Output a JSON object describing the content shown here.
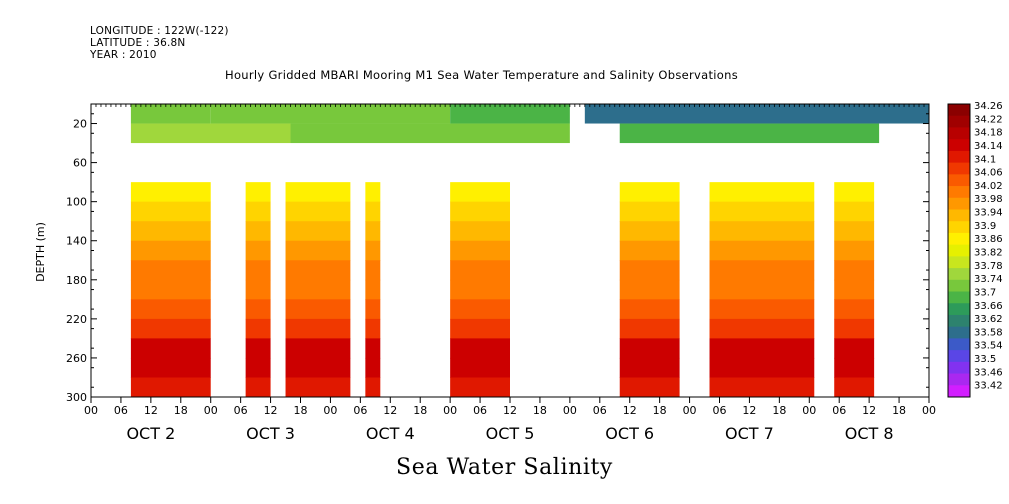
{
  "header": {
    "longitude": "LONGITUDE : 122W(-122)",
    "latitude": "LATITUDE : 36.8N",
    "year": "YEAR : 2010"
  },
  "chart_data": {
    "type": "heatmap",
    "title": "Hourly Gridded MBARI Mooring M1 Sea Water Temperature and Salinity Observations",
    "xlabel": "Sea Water Salinity",
    "ylabel": "DEPTH (m)",
    "x_units": "hours since OCT 2 00:00",
    "xlim": [
      0,
      168
    ],
    "ylim": [
      300,
      0
    ],
    "y_ticks": [
      20,
      60,
      100,
      140,
      180,
      220,
      260,
      300
    ],
    "x_hour_ticks": [
      "00",
      "06",
      "12",
      "18",
      "00",
      "06",
      "12",
      "18",
      "00",
      "06",
      "12",
      "18",
      "00",
      "06",
      "12",
      "18",
      "00",
      "06",
      "12",
      "18",
      "00",
      "06",
      "12",
      "18",
      "00",
      "06",
      "12",
      "18",
      "00"
    ],
    "day_labels": [
      "OCT  2",
      "OCT  3",
      "OCT  4",
      "OCT  5",
      "OCT  6",
      "OCT  7",
      "OCT  8"
    ],
    "colorbar_levels": [
      34.26,
      34.22,
      34.18,
      34.14,
      34.1,
      34.06,
      34.02,
      33.98,
      33.94,
      33.9,
      33.86,
      33.82,
      33.78,
      33.74,
      33.7,
      33.66,
      33.62,
      33.58,
      33.54,
      33.5,
      33.46,
      33.42
    ],
    "colorbar_colors": [
      "#8b0000",
      "#a00000",
      "#b80000",
      "#cc0000",
      "#e01800",
      "#f03800",
      "#fa5a00",
      "#ff7a00",
      "#ff9800",
      "#ffb800",
      "#ffd400",
      "#fff000",
      "#e6f000",
      "#c8e61e",
      "#a0d73c",
      "#78c83c",
      "#4bb446",
      "#2d9b5a",
      "#2d826e",
      "#2d6e8c",
      "#3c5ac8",
      "#5a46e6",
      "#8232f0",
      "#aa28f0",
      "#d21eff"
    ],
    "surface_salinity": [
      {
        "start": 8,
        "end": 24,
        "value": 33.69
      },
      {
        "start": 24,
        "end": 72,
        "value": 33.69
      },
      {
        "start": 72,
        "end": 96,
        "value": 33.65
      },
      {
        "start": 99,
        "end": 168,
        "value": 33.53
      }
    ],
    "mid_salinity": [
      {
        "start": 8,
        "end": 40,
        "value": 33.7
      },
      {
        "start": 40,
        "end": 96,
        "value": 33.69
      },
      {
        "start": 106,
        "end": 158,
        "value": 33.65
      }
    ],
    "profile_depths": [
      80,
      100,
      120,
      140,
      160,
      180,
      200,
      220,
      240,
      260,
      280,
      300
    ],
    "profile_salinity": [
      33.8,
      33.84,
      33.9,
      33.95,
      33.98,
      34.0,
      34.02,
      34.06,
      34.12,
      34.16,
      34.13,
      34.1
    ],
    "deep_data_days": [
      {
        "start": 8,
        "end": 24
      },
      {
        "start": 31,
        "end": 36
      },
      {
        "start": 39,
        "end": 52
      },
      {
        "start": 55,
        "end": 58
      },
      {
        "start": 72,
        "end": 84
      },
      {
        "start": 106,
        "end": 118
      },
      {
        "start": 124,
        "end": 145
      },
      {
        "start": 149,
        "end": 157
      }
    ]
  }
}
